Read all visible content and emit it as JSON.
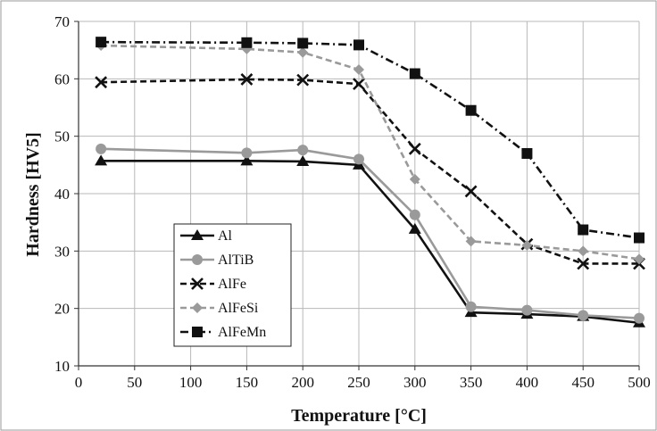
{
  "chart_data": {
    "type": "line",
    "title": "",
    "xlabel": "Temperature [°C]",
    "ylabel": "Hardness [HV5]",
    "xlim": [
      0,
      500
    ],
    "ylim": [
      10,
      70
    ],
    "x_ticks": [
      "0",
      "50",
      "100",
      "150",
      "200",
      "250",
      "300",
      "350",
      "400",
      "450",
      "500"
    ],
    "y_ticks": [
      "10",
      "20",
      "30",
      "40",
      "50",
      "60",
      "70"
    ],
    "grid": true,
    "legend_position": "bottom-left",
    "x": [
      20,
      150,
      200,
      250,
      300,
      350,
      400,
      450,
      500
    ],
    "series": [
      {
        "name": "Al",
        "values": [
          45.7,
          45.7,
          45.6,
          45.0,
          33.8,
          19.3,
          19.0,
          18.6,
          17.5
        ],
        "color": "#111111",
        "dash": "solid",
        "marker": "triangle"
      },
      {
        "name": "AlTiB",
        "values": [
          47.8,
          47.1,
          47.6,
          46.0,
          36.3,
          20.3,
          19.7,
          18.8,
          18.3
        ],
        "color": "#9a9a9a",
        "dash": "solid",
        "marker": "circle"
      },
      {
        "name": "AlFe",
        "values": [
          59.4,
          59.9,
          59.8,
          59.1,
          47.8,
          40.4,
          31.2,
          27.8,
          27.8
        ],
        "color": "#111111",
        "dash": "dash",
        "marker": "x"
      },
      {
        "name": "AlFeSi",
        "values": [
          65.8,
          65.2,
          64.6,
          61.6,
          42.5,
          31.7,
          31.0,
          30.0,
          28.6
        ],
        "color": "#9a9a9a",
        "dash": "dash",
        "marker": "diamond"
      },
      {
        "name": "AlFeMn",
        "values": [
          66.4,
          66.3,
          66.2,
          65.9,
          60.9,
          54.5,
          47.0,
          33.7,
          32.3
        ],
        "color": "#111111",
        "dash": "dashdot",
        "marker": "square"
      }
    ]
  }
}
